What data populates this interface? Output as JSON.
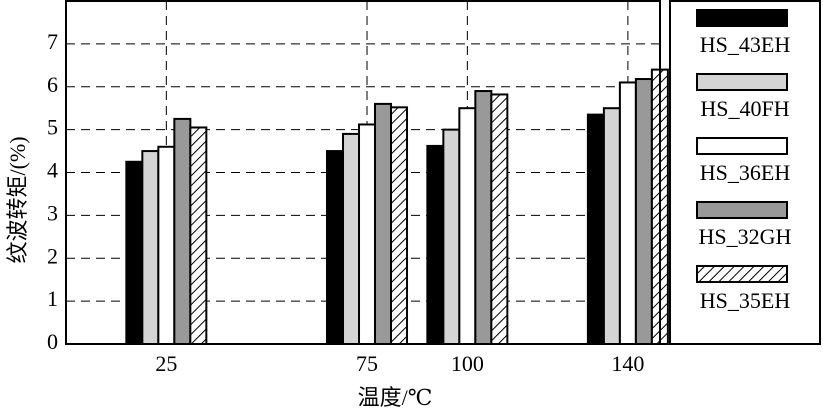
{
  "chart_data": {
    "type": "bar",
    "x_label": "温度/℃",
    "y_label": "纹波转矩/(%)",
    "x": [
      25,
      75,
      100,
      140
    ],
    "xlim": [
      0,
      148
    ],
    "xticks": [
      25,
      75,
      100,
      140
    ],
    "ylim": [
      0,
      8
    ],
    "yticks": [
      0,
      1,
      2,
      3,
      4,
      5,
      6,
      7
    ],
    "grid": true,
    "legend": "right",
    "series": [
      {
        "name": "HS_43EH",
        "color": "#000000",
        "values": [
          4.25,
          4.5,
          4.62,
          5.35
        ]
      },
      {
        "name": "HS_40FH",
        "color": "#d4d4d4",
        "values": [
          4.5,
          4.9,
          5.0,
          5.5
        ]
      },
      {
        "name": "HS_36EH",
        "color": "#ffffff",
        "values": [
          4.6,
          5.12,
          5.5,
          6.1
        ]
      },
      {
        "name": "HS_32GH",
        "color": "#999999",
        "values": [
          5.25,
          5.6,
          5.9,
          6.18
        ]
      },
      {
        "name": "HS_35EH",
        "color": "#ffffff",
        "hatch": true,
        "values": [
          5.05,
          5.52,
          5.82,
          6.4
        ]
      }
    ]
  }
}
